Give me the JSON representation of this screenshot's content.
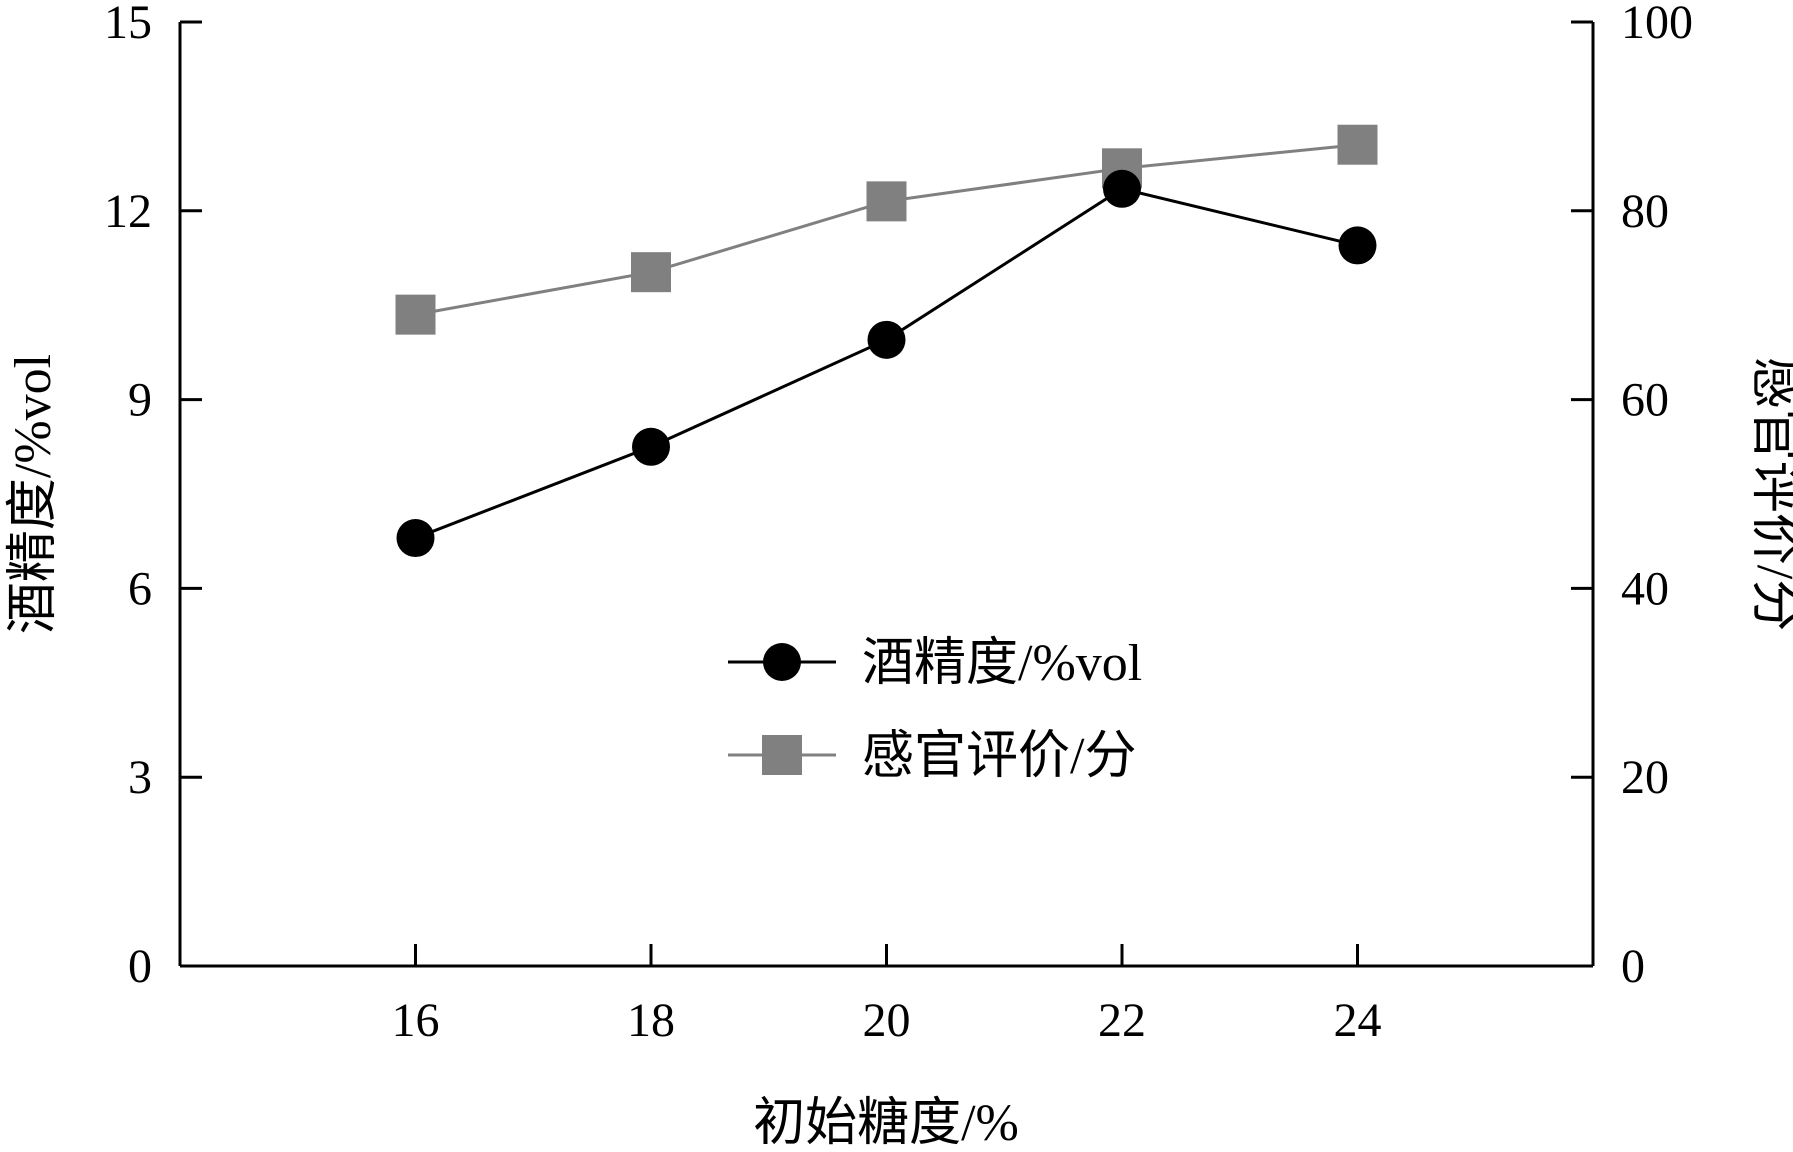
{
  "chart_data": {
    "type": "line",
    "x": [
      16,
      18,
      20,
      22,
      24
    ],
    "xlabel": "初始糖度/%",
    "xlim": [
      14,
      26
    ],
    "xticks": [
      16,
      18,
      20,
      22,
      24
    ],
    "ylabel_left": "酒精度/%vol",
    "ylim_left": [
      0,
      15
    ],
    "yticks_left": [
      0,
      3,
      6,
      9,
      12,
      15
    ],
    "ylabel_right": "感官评价/分",
    "ylim_right": [
      0,
      100
    ],
    "yticks_right": [
      0,
      20,
      40,
      60,
      80,
      100
    ],
    "grid": false,
    "legend_position": "center",
    "series": [
      {
        "name": "酒精度/%vol",
        "axis": "left",
        "marker": "circle",
        "color": "#000000",
        "values": [
          6.8,
          8.25,
          9.95,
          12.35,
          11.45
        ]
      },
      {
        "name": "感官评价/分",
        "axis": "right",
        "marker": "square",
        "color": "#808080",
        "values": [
          69,
          73.5,
          81,
          84.5,
          87
        ]
      }
    ]
  }
}
